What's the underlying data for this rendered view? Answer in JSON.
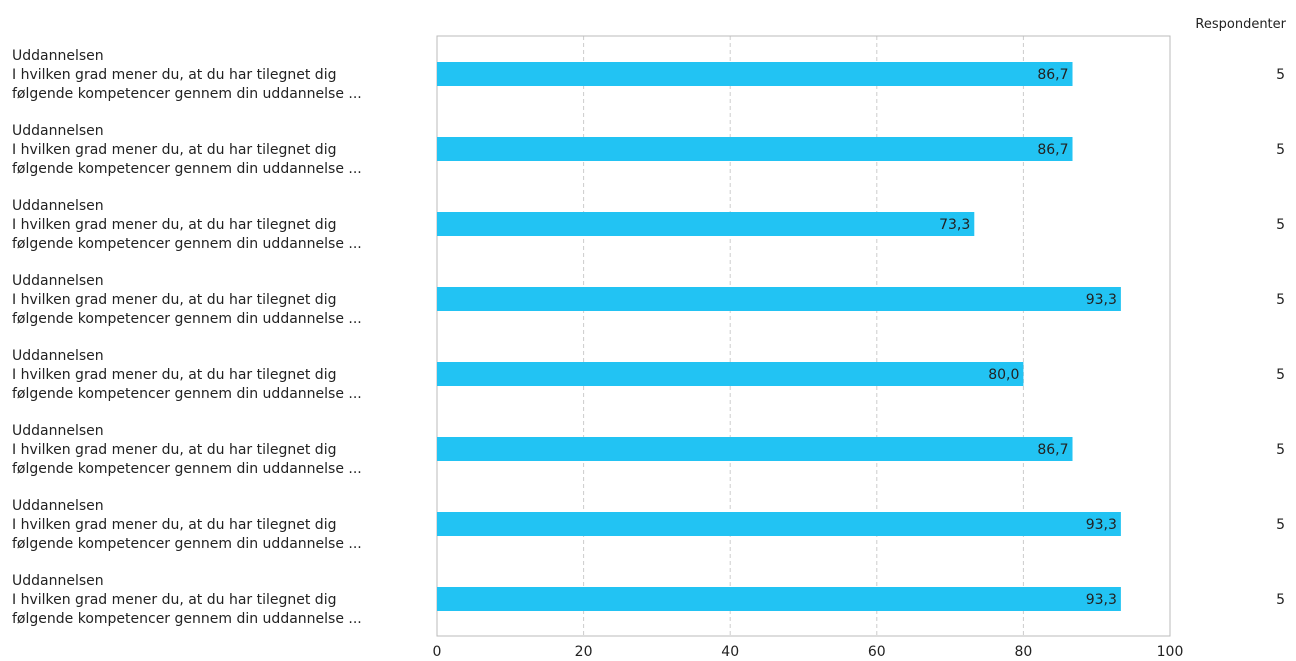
{
  "chart_data": {
    "type": "bar",
    "orientation": "horizontal",
    "categories": [
      [
        "Uddannelsen",
        "I hvilken grad mener du, at du har tilegnet dig",
        "følgende kompetencer gennem din uddannelse ..."
      ],
      [
        "Uddannelsen",
        "I hvilken grad mener du, at du har tilegnet dig",
        "følgende kompetencer gennem din uddannelse ..."
      ],
      [
        "Uddannelsen",
        "I hvilken grad mener du, at du har tilegnet dig",
        "følgende kompetencer gennem din uddannelse ..."
      ],
      [
        "Uddannelsen",
        "I hvilken grad mener du, at du har tilegnet dig",
        "følgende kompetencer gennem din uddannelse ..."
      ],
      [
        "Uddannelsen",
        "I hvilken grad mener du, at du har tilegnet dig",
        "følgende kompetencer gennem din uddannelse ..."
      ],
      [
        "Uddannelsen",
        "I hvilken grad mener du, at du har tilegnet dig",
        "følgende kompetencer gennem din uddannelse ..."
      ],
      [
        "Uddannelsen",
        "I hvilken grad mener du, at du har tilegnet dig",
        "følgende kompetencer gennem din uddannelse ..."
      ],
      [
        "Uddannelsen",
        "I hvilken grad mener du, at du har tilegnet dig",
        "følgende kompetencer gennem din uddannelse ..."
      ]
    ],
    "values": [
      86.7,
      86.7,
      73.3,
      93.3,
      80.0,
      86.7,
      93.3,
      93.3
    ],
    "value_labels": [
      "86,7",
      "86,7",
      "73,3",
      "93,3",
      "80,0",
      "86,7",
      "93,3",
      "93,3"
    ],
    "respondents_header": "Respondenter",
    "respondents": [
      "5",
      "5",
      "5",
      "5",
      "5",
      "5",
      "5",
      "5"
    ],
    "xlim": [
      0,
      100
    ],
    "xticks": [
      0,
      20,
      40,
      60,
      80,
      100
    ],
    "grid": true,
    "bar_color": "#22c3f3",
    "title": "",
    "xlabel": "",
    "ylabel": ""
  }
}
